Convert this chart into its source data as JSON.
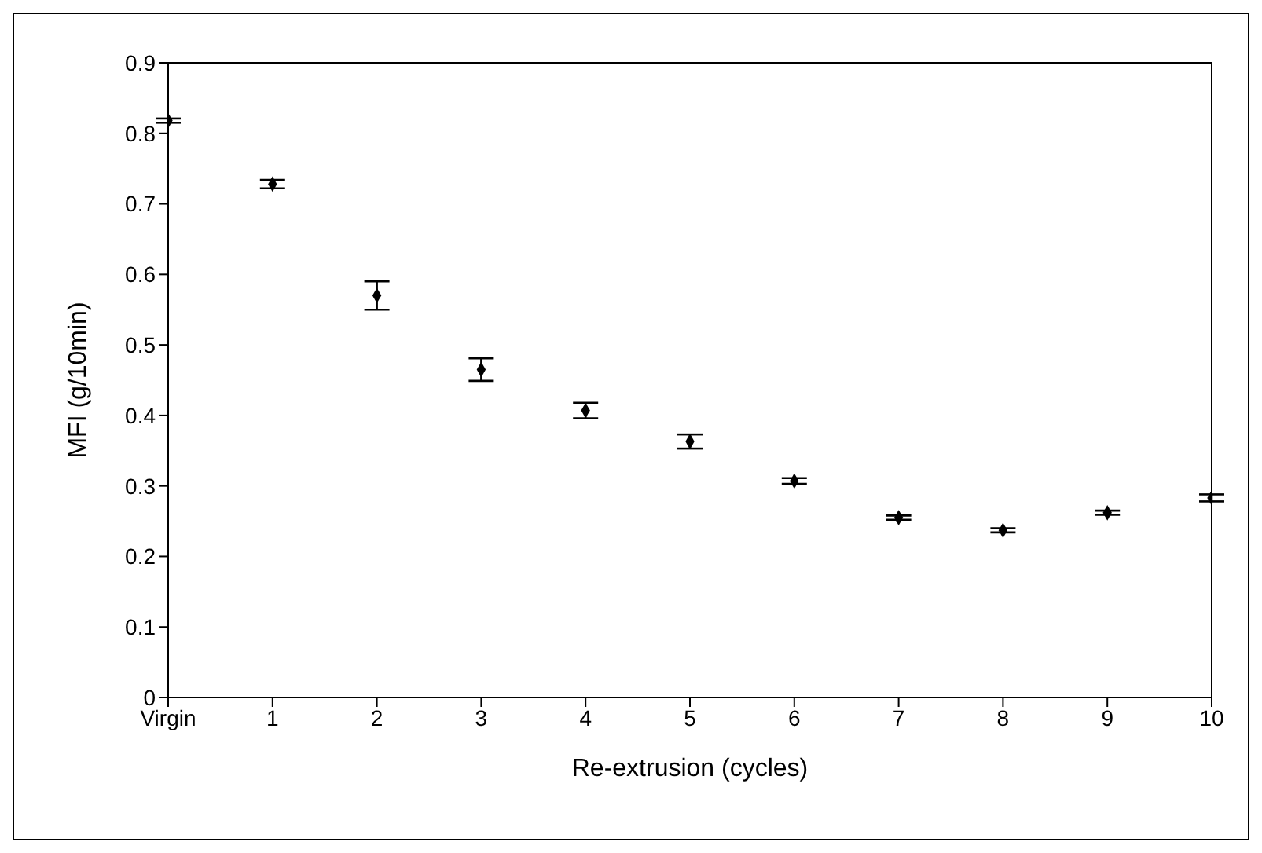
{
  "chart_data": {
    "type": "scatter",
    "xlabel": "Re-extrusion (cycles)",
    "ylabel": "MFI (g/10min)",
    "categories": [
      "Virgin",
      "1",
      "2",
      "3",
      "4",
      "5",
      "6",
      "7",
      "8",
      "9",
      "10"
    ],
    "values": [
      0.818,
      0.728,
      0.57,
      0.465,
      0.407,
      0.363,
      0.307,
      0.255,
      0.237,
      0.262,
      0.283
    ],
    "errors": [
      0.003,
      0.006,
      0.02,
      0.016,
      0.011,
      0.01,
      0.004,
      0.003,
      0.003,
      0.003,
      0.005
    ],
    "color": "#000000",
    "marker": "diamond",
    "ylim": [
      0,
      0.9
    ],
    "yticks": [
      0,
      0.1,
      0.2,
      0.3,
      0.4,
      0.5,
      0.6,
      0.7,
      0.8,
      0.9
    ],
    "grid": false
  }
}
